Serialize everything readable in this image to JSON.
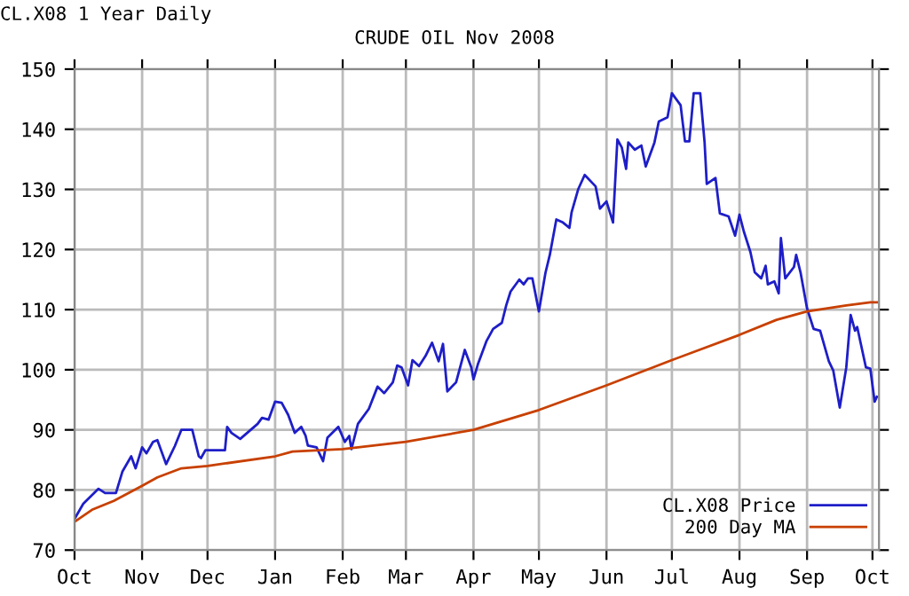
{
  "chart_data": {
    "type": "line",
    "title": "CRUDE OIL Nov 2008",
    "subtitle": "CL.X08 1 Year Daily",
    "xlim": [
      "2007-10-01",
      "2008-10-04"
    ],
    "ylim": [
      70,
      150
    ],
    "yticks": [
      70,
      80,
      90,
      100,
      110,
      120,
      130,
      140,
      150
    ],
    "xticks": [
      {
        "value": "2007-10-01",
        "label": "Oct"
      },
      {
        "value": "2007-11-01",
        "label": "Nov"
      },
      {
        "value": "2007-12-01",
        "label": "Dec"
      },
      {
        "value": "2008-01-01",
        "label": "Jan"
      },
      {
        "value": "2008-02-01",
        "label": "Feb"
      },
      {
        "value": "2008-03-01",
        "label": "Mar"
      },
      {
        "value": "2008-04-01",
        "label": "Apr"
      },
      {
        "value": "2008-05-01",
        "label": "May"
      },
      {
        "value": "2008-06-01",
        "label": "Jun"
      },
      {
        "value": "2008-07-01",
        "label": "Jul"
      },
      {
        "value": "2008-08-01",
        "label": "Aug"
      },
      {
        "value": "2008-09-01",
        "label": "Sep"
      },
      {
        "value": "2008-10-01",
        "label": "Oct"
      }
    ],
    "grid": true,
    "legend": "bottom right",
    "series": [
      {
        "name": "CL.X08 Price",
        "color": "#1e1ec8",
        "x": [
          "2007-10-01",
          "2007-10-05",
          "2007-10-12",
          "2007-10-15",
          "2007-10-20",
          "2007-10-23",
          "2007-10-27",
          "2007-10-29",
          "2007-11-01",
          "2007-11-03",
          "2007-11-06",
          "2007-11-08",
          "2007-11-12",
          "2007-11-16",
          "2007-11-19",
          "2007-11-24",
          "2007-11-27",
          "2007-11-28",
          "2007-11-30",
          "2007-12-09",
          "2007-12-10",
          "2007-12-12",
          "2007-12-16",
          "2007-12-24",
          "2007-12-26",
          "2007-12-29",
          "2008-01-01",
          "2008-01-04",
          "2008-01-07",
          "2008-01-10",
          "2008-01-13",
          "2008-01-15",
          "2008-01-16",
          "2008-01-20",
          "2008-01-23",
          "2008-01-25",
          "2008-01-30",
          "2008-02-02",
          "2008-02-04",
          "2008-02-05",
          "2008-02-08",
          "2008-02-13",
          "2008-02-17",
          "2008-02-20",
          "2008-02-24",
          "2008-02-26",
          "2008-02-28",
          "2008-03-02",
          "2008-03-04",
          "2008-03-07",
          "2008-03-10",
          "2008-03-13",
          "2008-03-16",
          "2008-03-18",
          "2008-03-20",
          "2008-03-24",
          "2008-03-28",
          "2008-03-31",
          "2008-04-01",
          "2008-04-03",
          "2008-04-07",
          "2008-04-10",
          "2008-04-14",
          "2008-04-16",
          "2008-04-18",
          "2008-04-22",
          "2008-04-24",
          "2008-04-26",
          "2008-04-28",
          "2008-05-01",
          "2008-05-04",
          "2008-05-06",
          "2008-05-09",
          "2008-05-12",
          "2008-05-15",
          "2008-05-16",
          "2008-05-19",
          "2008-05-22",
          "2008-05-27",
          "2008-05-29",
          "2008-06-01",
          "2008-06-04",
          "2008-06-06",
          "2008-06-08",
          "2008-06-10",
          "2008-06-11",
          "2008-06-14",
          "2008-06-17",
          "2008-06-19",
          "2008-06-23",
          "2008-06-25",
          "2008-06-29",
          "2008-07-01",
          "2008-07-05",
          "2008-07-07",
          "2008-07-09",
          "2008-07-11",
          "2008-07-14",
          "2008-07-16",
          "2008-07-17",
          "2008-07-21",
          "2008-07-23",
          "2008-07-27",
          "2008-07-30",
          "2008-08-01",
          "2008-08-03",
          "2008-08-06",
          "2008-08-08",
          "2008-08-11",
          "2008-08-13",
          "2008-08-14",
          "2008-08-17",
          "2008-08-19",
          "2008-08-20",
          "2008-08-22",
          "2008-08-26",
          "2008-08-27",
          "2008-08-29",
          "2008-09-01",
          "2008-09-04",
          "2008-09-07",
          "2008-09-11",
          "2008-09-13",
          "2008-09-16",
          "2008-09-19",
          "2008-09-21",
          "2008-09-23",
          "2008-09-24",
          "2008-09-28",
          "2008-09-30",
          "2008-10-02",
          "2008-10-03"
        ],
        "values": [
          75.2,
          77.7,
          80.2,
          79.5,
          79.5,
          83.1,
          85.6,
          83.6,
          87.1,
          86.1,
          88,
          88.3,
          84.3,
          87.3,
          90,
          90,
          85.6,
          85.3,
          86.6,
          86.6,
          90.5,
          89.5,
          88.5,
          91,
          92,
          91.7,
          94.7,
          94.5,
          92.5,
          89.5,
          90.5,
          89,
          87.4,
          87.1,
          84.8,
          88.7,
          90.5,
          88,
          89,
          86.8,
          91,
          93.5,
          97.2,
          96.1,
          97.9,
          100.7,
          100.4,
          97.4,
          101.6,
          100.6,
          102.3,
          104.5,
          101.4,
          104.3,
          96.4,
          97.9,
          103.3,
          100.4,
          98.4,
          100.9,
          104.8,
          106.8,
          107.8,
          110.7,
          113,
          115,
          114.2,
          115.2,
          115.2,
          109.7,
          116.1,
          119.1,
          125,
          124.5,
          123.6,
          126.2,
          130,
          132.4,
          130.5,
          126.8,
          128,
          124.5,
          138.3,
          137,
          133.4,
          137.8,
          136.6,
          137.3,
          133.8,
          137.8,
          141.3,
          142,
          146,
          144,
          138,
          138,
          146,
          146,
          137.8,
          130.9,
          131.9,
          126,
          125.5,
          122.3,
          125.8,
          123,
          119.6,
          116.2,
          115.2,
          117.3,
          114.2,
          114.7,
          112.7,
          121.9,
          115.2,
          117.1,
          119.1,
          116.2,
          110.2,
          106.8,
          106.5,
          101.4,
          99.9,
          93.7,
          100.4,
          109.1,
          106.5,
          107.1,
          100.4,
          100.2,
          94.7,
          95.5
        ]
      },
      {
        "name": "200 Day MA",
        "color": "#c84000",
        "x": [
          "2007-10-01",
          "2007-10-09",
          "2007-10-19",
          "2007-11-01",
          "2007-11-08",
          "2007-11-19",
          "2007-12-01",
          "2008-01-01",
          "2008-01-09",
          "2008-02-01",
          "2008-03-01",
          "2008-04-01",
          "2008-05-01",
          "2008-06-01",
          "2008-07-01",
          "2008-08-01",
          "2008-08-18",
          "2008-09-01",
          "2008-09-19",
          "2008-09-30",
          "2008-10-03"
        ],
        "values": [
          74.7,
          76.7,
          78.2,
          80.7,
          82.1,
          83.6,
          84,
          85.6,
          86.4,
          86.8,
          88,
          90,
          93.3,
          97.4,
          101.6,
          105.8,
          108.3,
          109.7,
          110.7,
          111.2,
          111.2
        ]
      }
    ]
  }
}
